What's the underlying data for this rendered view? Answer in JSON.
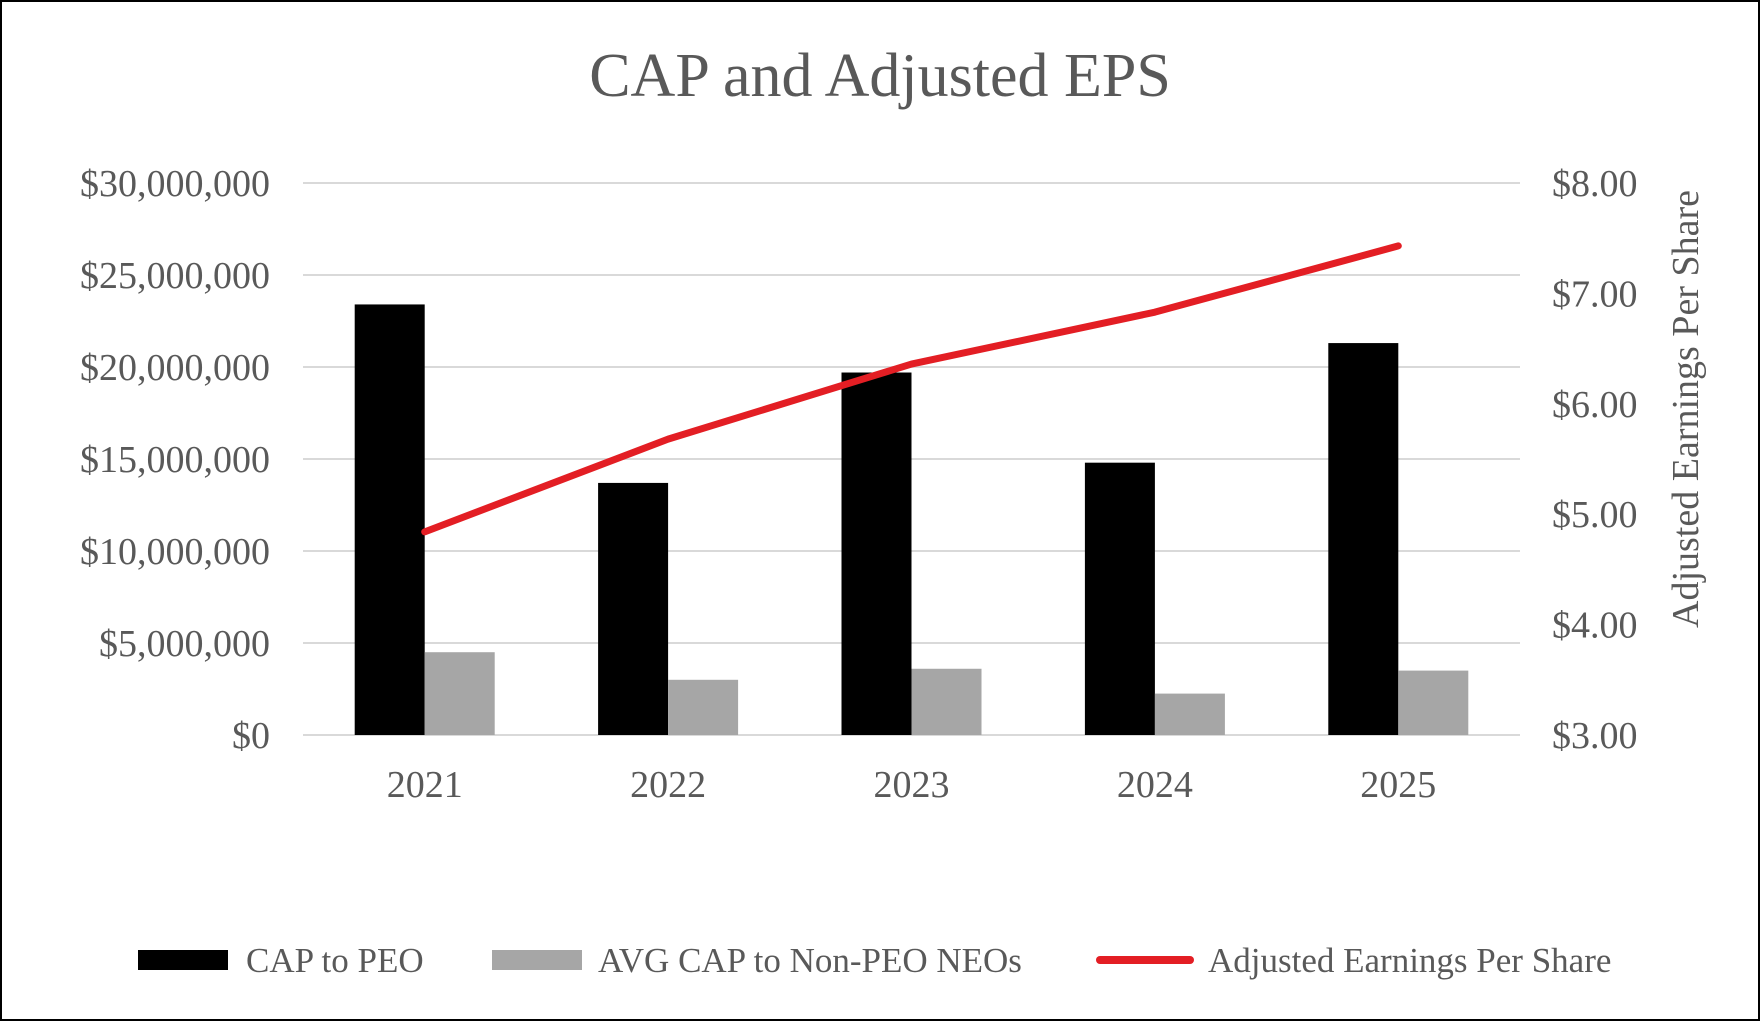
{
  "chart_data": {
    "type": "bar",
    "title": "CAP and Adjusted EPS",
    "categories": [
      "2021",
      "2022",
      "2023",
      "2024",
      "2025"
    ],
    "series": [
      {
        "name": "CAP to PEO",
        "kind": "bar",
        "axis": "left",
        "color": "#000000",
        "values": [
          23400000,
          13700000,
          19700000,
          14800000,
          21300000
        ]
      },
      {
        "name": "AVG CAP to Non-PEO NEOs",
        "kind": "bar",
        "axis": "left",
        "color": "#a6a6a6",
        "values": [
          4500000,
          3000000,
          3600000,
          2250000,
          3500000
        ]
      },
      {
        "name": "Adjusted Earnings Per Share",
        "kind": "line",
        "axis": "right",
        "color": "#e31e24",
        "values": [
          4.84,
          5.68,
          6.36,
          6.83,
          7.43
        ]
      }
    ],
    "y_left": {
      "ylim": [
        0,
        30000000
      ],
      "ticks": [
        0,
        5000000,
        10000000,
        15000000,
        20000000,
        25000000,
        30000000
      ],
      "tick_labels": [
        "$0",
        "$5,000,000",
        "$10,000,000",
        "$15,000,000",
        "$20,000,000",
        "$25,000,000",
        "$30,000,000"
      ]
    },
    "y_right": {
      "ylim": [
        3,
        8
      ],
      "label": "Adjusted Earnings Per Share",
      "ticks": [
        3,
        4,
        5,
        6,
        7,
        8
      ],
      "tick_labels": [
        "$3.00",
        "$4.00",
        "$5.00",
        "$6.00",
        "$7.00",
        "$8.00"
      ]
    },
    "grid": true,
    "gridline_color": "#d9d9d9",
    "legend_position": "bottom"
  }
}
